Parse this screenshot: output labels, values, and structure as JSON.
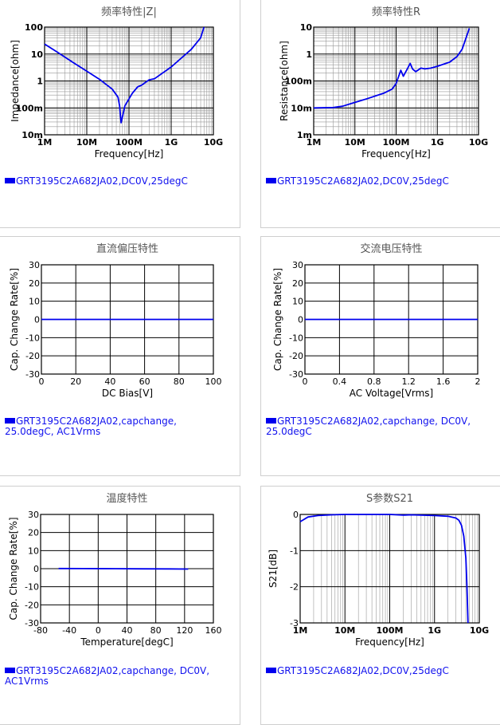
{
  "colors": {
    "series": "#0000ee",
    "legend_text": "#1111ee",
    "grid_major": "#000000",
    "grid_minor": "#999999",
    "text": "#000000",
    "title": "#555555"
  },
  "chart_data": [
    {
      "id": "z",
      "type": "line",
      "title": "频率特性|Z|",
      "xlabel": "Frequency[Hz]",
      "ylabel": "Impedance[ohm]",
      "xscale": "log",
      "yscale": "log",
      "xlim": [
        1000000,
        10000000000
      ],
      "ylim": [
        0.01,
        100
      ],
      "x_ticks": [
        1000000,
        10000000,
        100000000,
        1000000000,
        10000000000
      ],
      "x_tick_labels": [
        "1M",
        "10M",
        "100M",
        "1G",
        "10G"
      ],
      "y_ticks": [
        0.01,
        0.1,
        1,
        10,
        100
      ],
      "y_tick_labels": [
        "10m",
        "100m",
        "1",
        "10",
        "100"
      ],
      "grid": true,
      "legend": "GRT3195C2A682JA02,DC0V,25degC",
      "series": [
        {
          "x": [
            1000000,
            2000000,
            5000000,
            10000000,
            20000000,
            40000000,
            55000000,
            60000000,
            65000000,
            80000000,
            120000000,
            160000000,
            200000000,
            250000000,
            300000000,
            400000000,
            1000000000,
            3000000000,
            5000000000,
            6000000000
          ],
          "y": [
            23.5,
            11.7,
            4.6,
            2.3,
            1.15,
            0.5,
            0.25,
            0.12,
            0.028,
            0.12,
            0.35,
            0.6,
            0.7,
            0.9,
            1.1,
            1.2,
            3.3,
            15,
            40,
            100
          ]
        }
      ]
    },
    {
      "id": "r",
      "type": "line",
      "title": "频率特性R",
      "xlabel": "Frequency[Hz]",
      "ylabel": "Resistance[ohm]",
      "xscale": "log",
      "yscale": "log",
      "xlim": [
        1000000,
        10000000000
      ],
      "ylim": [
        0.001,
        10
      ],
      "x_ticks": [
        1000000,
        10000000,
        100000000,
        1000000000,
        10000000000
      ],
      "x_tick_labels": [
        "1M",
        "10M",
        "100M",
        "1G",
        "10G"
      ],
      "y_ticks": [
        0.001,
        0.01,
        0.1,
        1,
        10
      ],
      "y_tick_labels": [
        "1m",
        "10m",
        "100m",
        "1",
        "10"
      ],
      "grid": true,
      "legend": "GRT3195C2A682JA02,DC0V,25degC",
      "series": [
        {
          "x": [
            1000000,
            3000000,
            5000000,
            10000000,
            20000000,
            50000000,
            80000000,
            100000000,
            130000000,
            150000000,
            180000000,
            220000000,
            250000000,
            300000000,
            400000000,
            500000000,
            700000000,
            1000000000,
            2000000000,
            3000000000,
            4000000000,
            5000000000,
            6000000000
          ],
          "y": [
            0.01,
            0.0103,
            0.0115,
            0.016,
            0.022,
            0.035,
            0.05,
            0.08,
            0.25,
            0.15,
            0.25,
            0.45,
            0.28,
            0.22,
            0.3,
            0.28,
            0.3,
            0.35,
            0.5,
            0.8,
            1.5,
            4,
            9
          ]
        }
      ]
    },
    {
      "id": "dcbias",
      "type": "line",
      "title": "直流偏压特性",
      "xlabel": "DC Bias[V]",
      "ylabel": "Cap. Change Rate[%]",
      "xlim": [
        0,
        100
      ],
      "ylim": [
        -30,
        30
      ],
      "x_ticks": [
        0,
        20,
        40,
        60,
        80,
        100
      ],
      "y_ticks": [
        -30,
        -20,
        -10,
        0,
        10,
        20,
        30
      ],
      "grid": true,
      "legend": "GRT3195C2A682JA02,capchange,\n25.0degC, AC1Vrms",
      "series": [
        {
          "x": [
            0,
            100
          ],
          "y": [
            0,
            0
          ]
        }
      ]
    },
    {
      "id": "acv",
      "type": "line",
      "title": "交流电压特性",
      "xlabel": "AC Voltage[Vrms]",
      "ylabel": "Cap. Change Rate[%]",
      "xlim": [
        0,
        2
      ],
      "ylim": [
        -30,
        30
      ],
      "x_ticks": [
        0,
        0.4,
        0.8,
        1.2,
        1.6,
        2
      ],
      "y_ticks": [
        -30,
        -20,
        -10,
        0,
        10,
        20,
        30
      ],
      "grid": true,
      "legend": "GRT3195C2A682JA02,capchange, DC0V,\n25.0degC",
      "series": [
        {
          "x": [
            0,
            2
          ],
          "y": [
            0,
            0
          ]
        }
      ]
    },
    {
      "id": "temp",
      "type": "line",
      "title": "温度特性",
      "xlabel": "Temperature[degC]",
      "ylabel": "Cap. Change Rate[%]",
      "xlim": [
        -80,
        160
      ],
      "ylim": [
        -30,
        30
      ],
      "x_ticks": [
        -80,
        -40,
        0,
        40,
        80,
        120,
        160
      ],
      "y_ticks": [
        -30,
        -20,
        -10,
        0,
        10,
        20,
        30
      ],
      "grid": true,
      "legend": "GRT3195C2A682JA02,capchange, DC0V,\nAC1Vrms",
      "series": [
        {
          "x": [
            -55,
            -20,
            25,
            60,
            100,
            125
          ],
          "y": [
            0.1,
            0.05,
            0,
            -0.1,
            -0.15,
            -0.2
          ]
        }
      ]
    },
    {
      "id": "s21",
      "type": "line",
      "title": "S参数S21",
      "xlabel": "Frequency[Hz]",
      "ylabel": "S21[dB]",
      "xscale": "log",
      "xlim": [
        1000000,
        10000000000
      ],
      "ylim": [
        -3,
        0
      ],
      "x_ticks": [
        1000000,
        10000000,
        100000000,
        1000000000,
        10000000000
      ],
      "x_tick_labels": [
        "1M",
        "10M",
        "100M",
        "1G",
        "10G"
      ],
      "y_ticks": [
        -3,
        -2,
        -1,
        0
      ],
      "grid": true,
      "legend": "GRT3195C2A682JA02,DC0V,25degC",
      "series": [
        {
          "x": [
            1000000,
            1500000,
            2500000,
            5000000,
            10000000,
            100000000,
            200000000,
            300000000,
            500000000,
            1000000000,
            2000000000,
            3000000000,
            3500000000,
            4000000000,
            4500000000,
            5000000000,
            5300000000,
            5600000000
          ],
          "y": [
            -0.2,
            -0.07,
            -0.03,
            -0.01,
            0,
            0,
            -0.02,
            -0.01,
            -0.02,
            -0.03,
            -0.05,
            -0.1,
            -0.16,
            -0.3,
            -0.6,
            -1.2,
            -2,
            -3
          ]
        }
      ]
    }
  ]
}
